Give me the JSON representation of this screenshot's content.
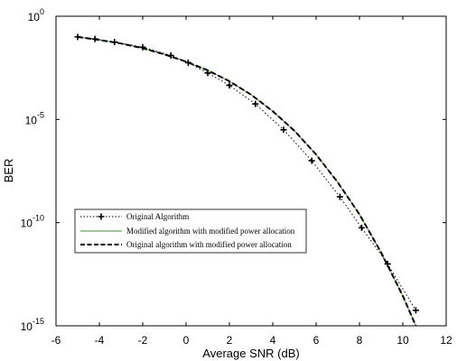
{
  "chart_data": {
    "type": "line",
    "xlabel": "Average SNR (dB)",
    "ylabel": "BER",
    "xlim": [
      -6,
      12
    ],
    "ylim_log10": [
      -15,
      0
    ],
    "yscale": "log",
    "x_ticks": [
      "-6",
      "-4",
      "-2",
      "0",
      "2",
      "4",
      "6",
      "8",
      "10",
      "12"
    ],
    "y_ticks": [
      {
        "base": "10",
        "exp": "0"
      },
      {
        "base": "10",
        "exp": "-5"
      },
      {
        "base": "10",
        "exp": "-10"
      },
      {
        "base": "10",
        "exp": "-15"
      }
    ],
    "grid": false,
    "legend_position": "center-left",
    "series": [
      {
        "name": "Original Algorithm",
        "style": "dotted-with-plus-markers",
        "color": "#000000",
        "x": [
          -5,
          -4.2,
          -3.3,
          -2,
          -0.7,
          0.1,
          1,
          2,
          3.2,
          4.5,
          5.8,
          7.1,
          8.1,
          9.3,
          10.6
        ],
        "log10_y": [
          -1.0,
          -1.1,
          -1.25,
          -1.5,
          -1.9,
          -2.25,
          -2.75,
          -3.35,
          -4.25,
          -5.5,
          -7.0,
          -8.75,
          -10.25,
          -12.0,
          -14.25
        ]
      },
      {
        "name": "Modified algorithm with modified power allocation",
        "style": "solid-thin",
        "color": "#4a8a3a",
        "x": [
          -5,
          -4,
          -3,
          -2,
          -1,
          0,
          1,
          2,
          3,
          4,
          5,
          6,
          7,
          8,
          9,
          10,
          10.6
        ],
        "log10_y": [
          -1.0,
          -1.15,
          -1.32,
          -1.55,
          -1.85,
          -2.2,
          -2.62,
          -3.15,
          -3.8,
          -4.6,
          -5.55,
          -6.7,
          -8.05,
          -9.6,
          -11.45,
          -13.55,
          -15.0
        ]
      },
      {
        "name": "Original algorithm with modified power allocation",
        "style": "dashed-thick",
        "color": "#000000",
        "x": [
          -5,
          -4,
          -3,
          -2,
          -1,
          0,
          1,
          2,
          3,
          4,
          5,
          6,
          7,
          8,
          9,
          10,
          10.6
        ],
        "log10_y": [
          -1.0,
          -1.15,
          -1.32,
          -1.55,
          -1.85,
          -2.2,
          -2.62,
          -3.15,
          -3.8,
          -4.6,
          -5.55,
          -6.7,
          -8.05,
          -9.6,
          -11.45,
          -13.55,
          -15.0
        ]
      }
    ]
  }
}
